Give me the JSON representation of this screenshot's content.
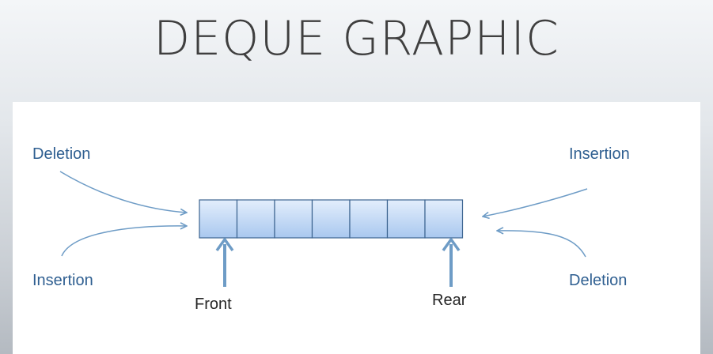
{
  "title": "DEQUE GRAPHIC",
  "diagram": {
    "cell_count": 7,
    "labels": {
      "left_top": "Deletion",
      "left_bottom": "Insertion",
      "right_top": "Insertion",
      "right_bottom": "Deletion",
      "front": "Front",
      "rear": "Rear"
    },
    "colors": {
      "annotation_text": "#2f5f91",
      "pointer_text": "#262626",
      "arrow": "#6e9cc6",
      "cell_fill_top": "#e3eefc",
      "cell_fill_bottom": "#a9c8ef",
      "cell_border": "#3c6490"
    }
  }
}
